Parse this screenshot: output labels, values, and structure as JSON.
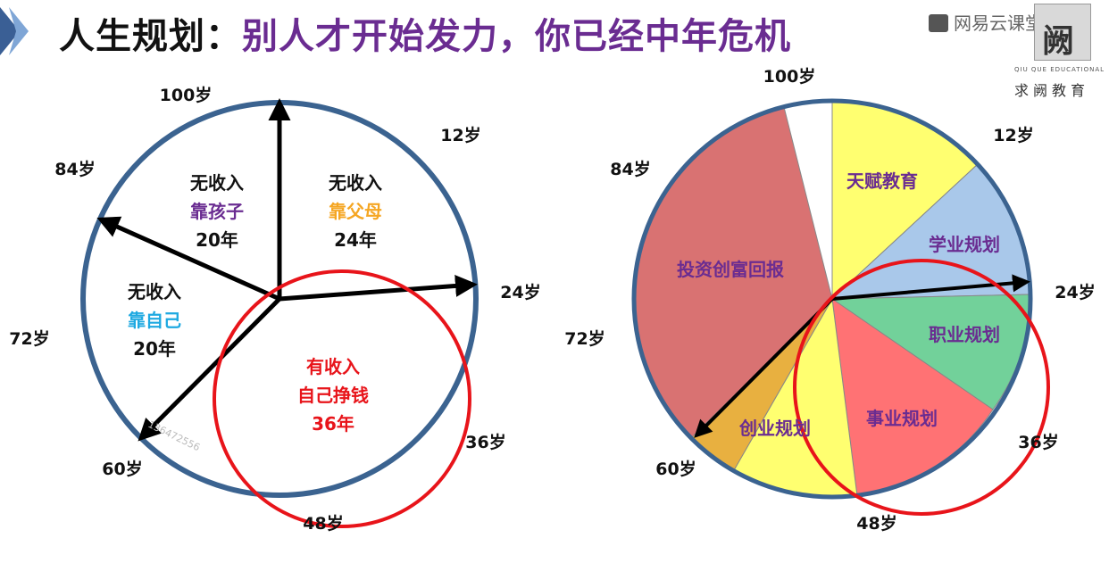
{
  "title": {
    "part1": "人生规划：",
    "part2": "别人才开始发力，你已经中年危机"
  },
  "logo": {
    "brand": "网易云课堂",
    "box_text": "阙",
    "sub_en": "QIU QUE EDUCATIONAL",
    "sub_cn": "求阙教育"
  },
  "ages": {
    "a100": "100岁",
    "a12": "12岁",
    "a24": "24岁",
    "a36": "36岁",
    "a48": "48岁",
    "a60": "60岁",
    "a72": "72岁",
    "a84": "84岁"
  },
  "left": {
    "s1": {
      "l1": "无收入",
      "l2": "靠父母",
      "l3": "24年"
    },
    "s2": {
      "l1": "无收入",
      "l2": "靠孩子",
      "l3": "20年"
    },
    "s3": {
      "l1": "无收入",
      "l2": "靠自己",
      "l3": "20年"
    },
    "s4": {
      "l1": "有收入",
      "l2": "自己挣钱",
      "l3": "36年"
    },
    "watermark": "136472556"
  },
  "right": {
    "seg_talent": "天赋教育",
    "seg_study": "学业规划",
    "seg_career": "职业规划",
    "seg_business": "事业规划",
    "seg_startup": "创业规划",
    "seg_invest": "投资创富回报"
  },
  "colors": {
    "circle": "#3b6390",
    "highlight": "#e8141a",
    "purple": "#6a2c91",
    "orange": "#f5a623",
    "cyan": "#1ea9e1",
    "talent": "#ffff70",
    "study": "#a9c8ea",
    "career": "#72d19a",
    "business": "#ff7274",
    "startup_yellow": "#ffff70",
    "startup_orange": "#e8b040",
    "invest": "#d97272"
  }
}
